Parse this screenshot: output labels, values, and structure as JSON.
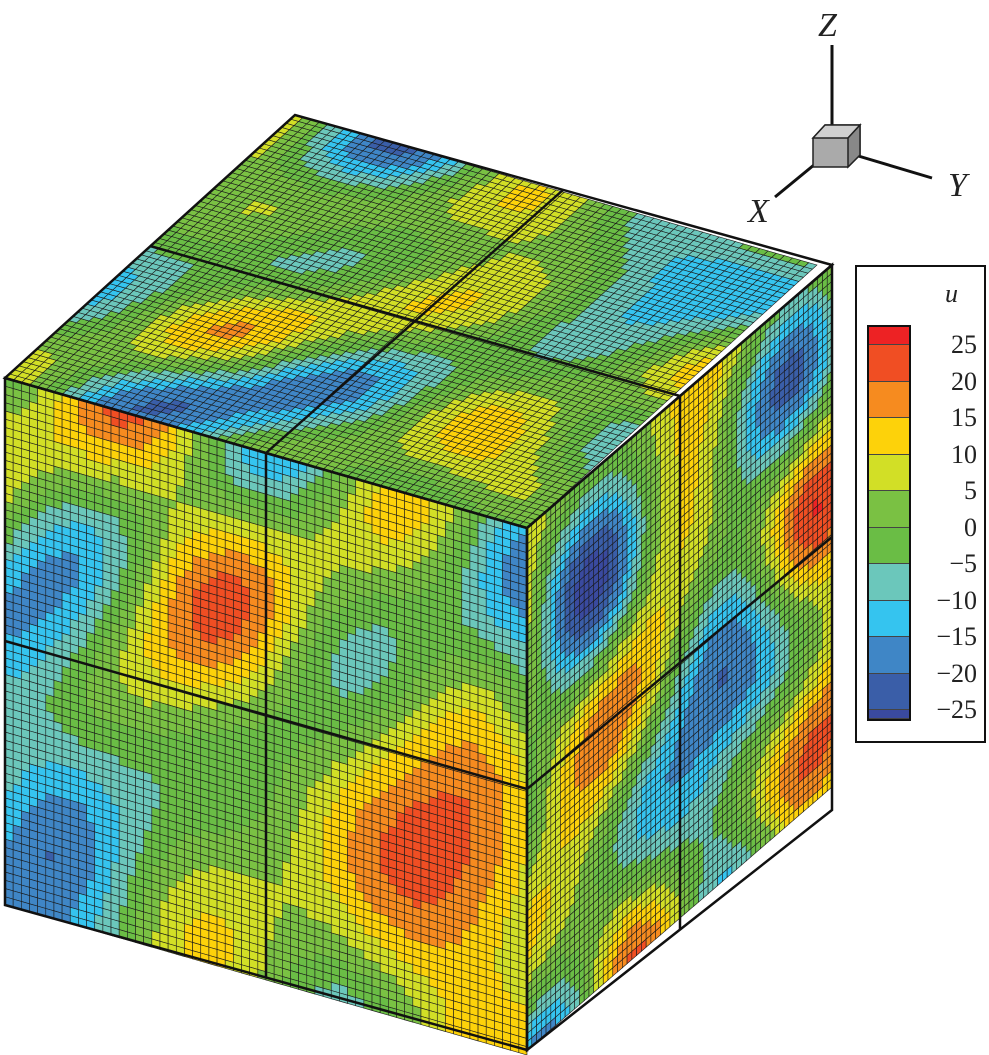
{
  "axes_triad": {
    "x_label": "X",
    "y_label": "Y",
    "z_label": "Z"
  },
  "legend": {
    "title": "u",
    "levels": [
      "25",
      "20",
      "15",
      "10",
      "5",
      "0",
      "−5",
      "−10",
      "−15",
      "−20",
      "−25"
    ],
    "bands": [
      {
        "from": 25,
        "to": 30,
        "color": "#ed2224"
      },
      {
        "from": 20,
        "to": 25,
        "color": "#f04e23"
      },
      {
        "from": 15,
        "to": 20,
        "color": "#f68b1f"
      },
      {
        "from": 10,
        "to": 15,
        "color": "#fdd20a"
      },
      {
        "from": 5,
        "to": 10,
        "color": "#d2df26"
      },
      {
        "from": 0,
        "to": 5,
        "color": "#7ac143"
      },
      {
        "from": -5,
        "to": 0,
        "color": "#6abd45"
      },
      {
        "from": -10,
        "to": -5,
        "color": "#6bc7bb"
      },
      {
        "from": -15,
        "to": -10,
        "color": "#35c4ef"
      },
      {
        "from": -20,
        "to": -15,
        "color": "#3f86c6"
      },
      {
        "from": -25,
        "to": -20,
        "color": "#3a5ea8"
      },
      {
        "from": -30,
        "to": -25,
        "color": "#3a4a9f"
      }
    ]
  },
  "grid_resolution": 64
}
